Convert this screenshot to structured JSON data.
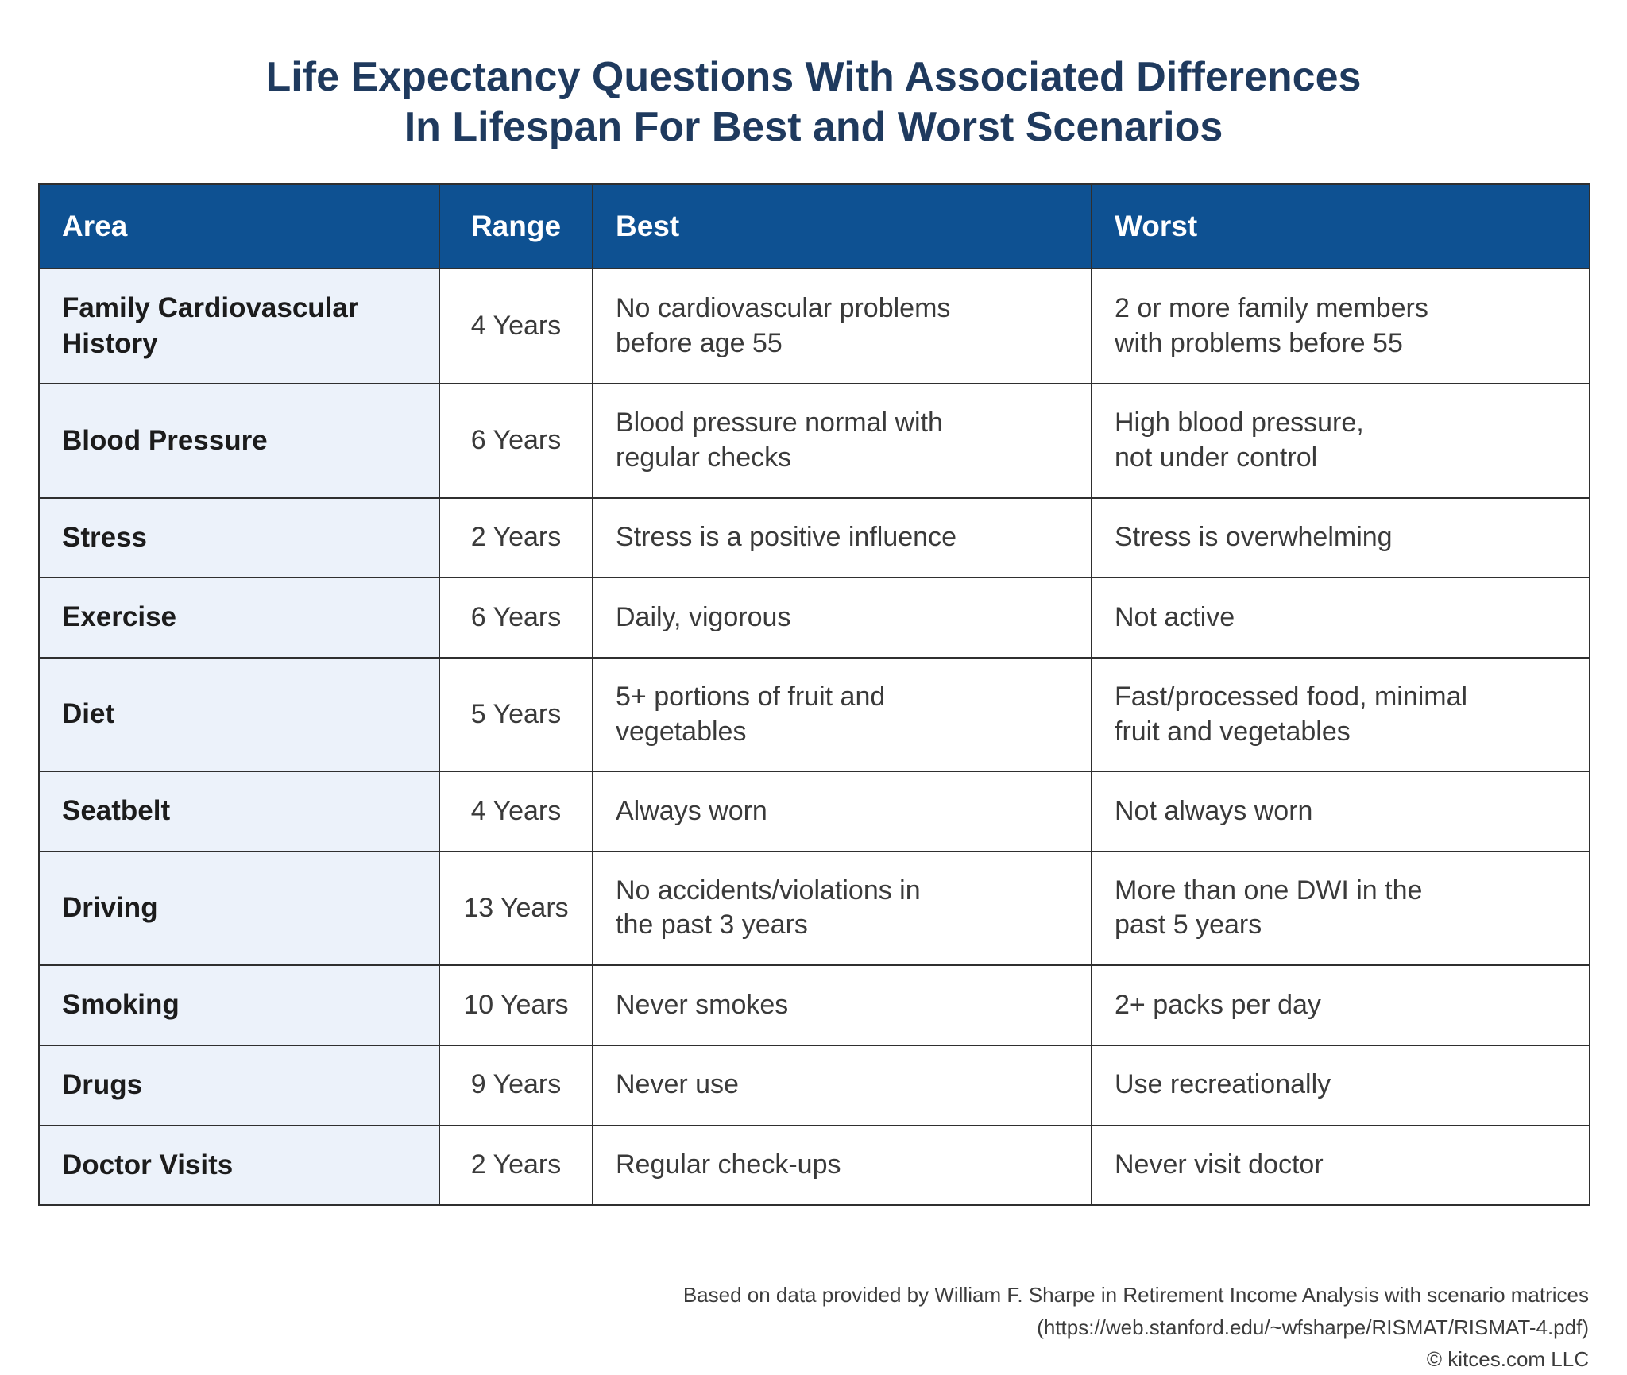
{
  "chart_data": {
    "type": "table",
    "title": "Life Expectancy Questions With Associated Differences In Lifespan For Best and Worst Scenarios",
    "title_lines": [
      "Life Expectancy Questions With Associated Differences",
      "In Lifespan For Best and Worst Scenarios"
    ],
    "columns": [
      "Area",
      "Range",
      "Best",
      "Worst"
    ],
    "rows": [
      [
        "Family Cardiovascular History",
        "4 Years",
        "No cardiovascular problems\nbefore age 55",
        "2 or more family members\nwith problems before 55"
      ],
      [
        "Blood Pressure",
        "6 Years",
        "Blood pressure normal with\nregular checks",
        "High blood pressure,\nnot under control"
      ],
      [
        "Stress",
        "2 Years",
        "Stress is a positive influence",
        "Stress is overwhelming"
      ],
      [
        "Exercise",
        "6 Years",
        "Daily, vigorous",
        "Not active"
      ],
      [
        "Diet",
        "5 Years",
        "5+ portions of fruit and\nvegetables",
        "Fast/processed food, minimal\nfruit and vegetables"
      ],
      [
        "Seatbelt",
        "4 Years",
        "Always worn",
        "Not always worn"
      ],
      [
        "Driving",
        "13 Years",
        "No accidents/violations in\nthe past 3 years",
        "More than one DWI in the\npast 5 years"
      ],
      [
        "Smoking",
        "10 Years",
        "Never smokes",
        "2+ packs per day"
      ],
      [
        "Drugs",
        "9 Years",
        "Never use",
        "Use recreationally"
      ],
      [
        "Doctor Visits",
        "2 Years",
        "Regular check-ups",
        "Never visit doctor"
      ]
    ]
  },
  "footer": {
    "lines": [
      "Based on data provided by William F. Sharpe in Retirement Income Analysis with scenario matrices",
      "(https://web.stanford.edu/~wfsharpe/RISMAT/RISMAT-4.pdf)",
      "© kitces.com LLC"
    ]
  },
  "colors": {
    "header_bg": "#0e5192",
    "title": "#1f3a5e",
    "row_label_bg": "#ecf2fa",
    "border": "#2f2f2f",
    "body_text": "#3a3a3a"
  }
}
